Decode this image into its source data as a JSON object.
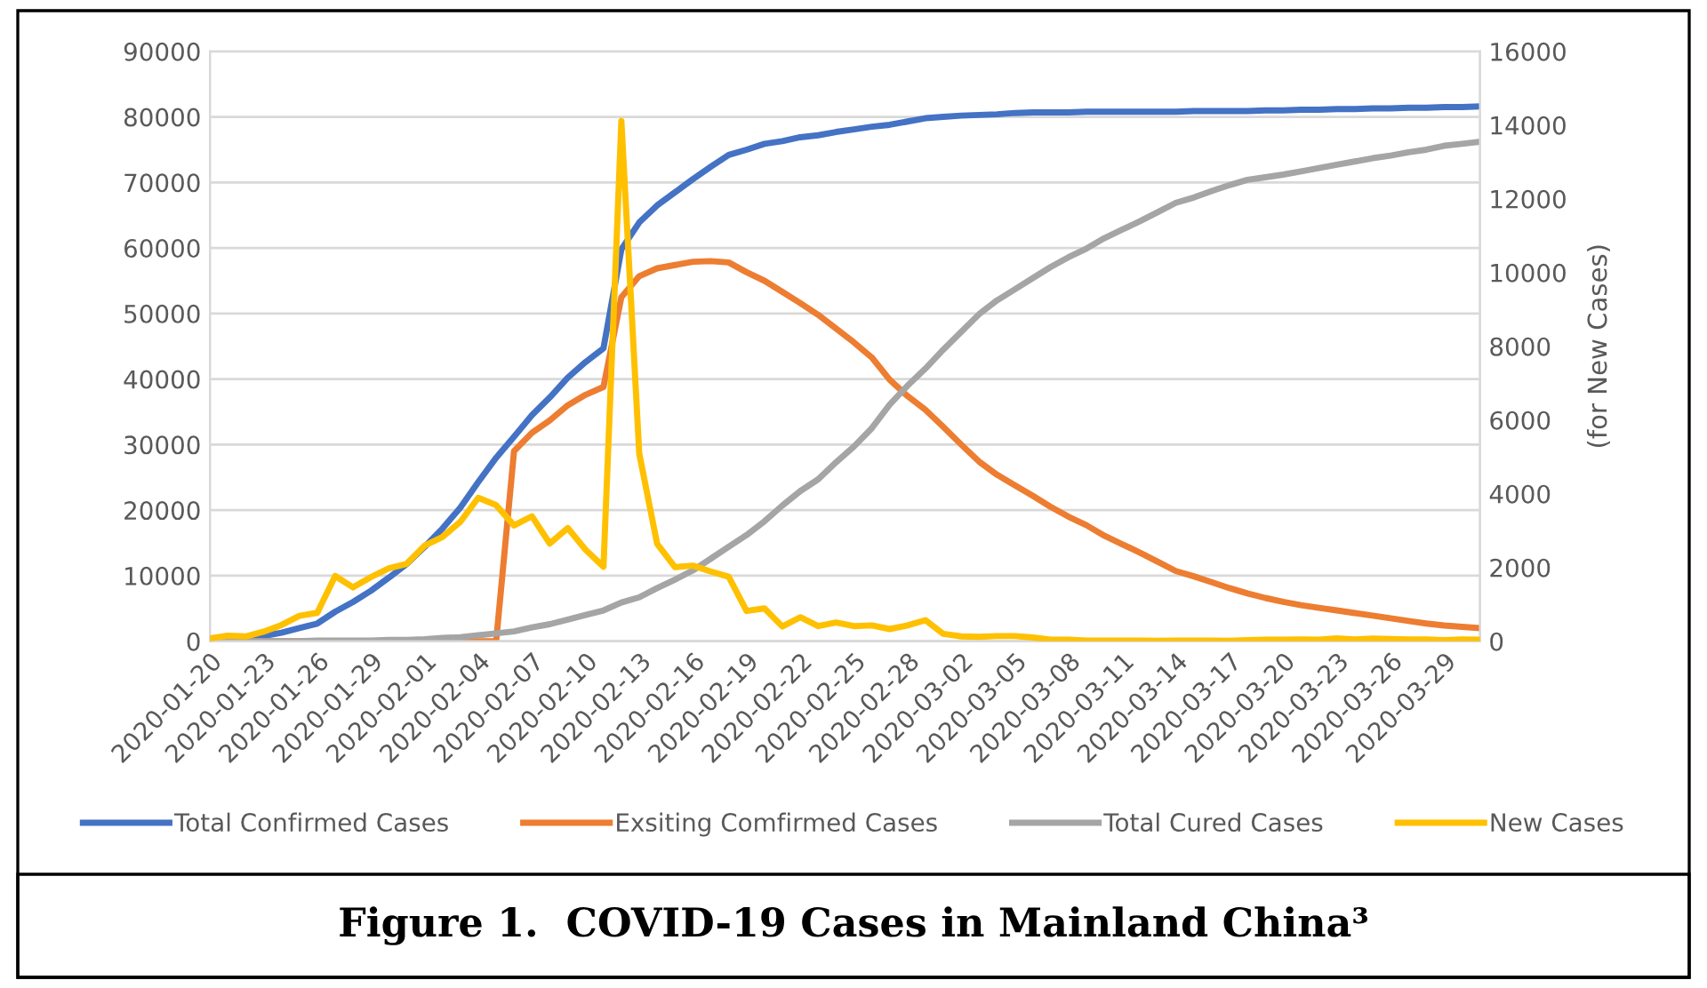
{
  "chart_data": {
    "type": "line",
    "title": "Figure 1.  COVID-19 Cases in Mainland China³",
    "y2label": "(for New Cases)",
    "x": [
      "2020-01-20",
      "2020-01-21",
      "2020-01-22",
      "2020-01-23",
      "2020-01-24",
      "2020-01-25",
      "2020-01-26",
      "2020-01-27",
      "2020-01-28",
      "2020-01-29",
      "2020-01-30",
      "2020-01-31",
      "2020-02-01",
      "2020-02-02",
      "2020-02-03",
      "2020-02-04",
      "2020-02-05",
      "2020-02-06",
      "2020-02-07",
      "2020-02-08",
      "2020-02-09",
      "2020-02-10",
      "2020-02-11",
      "2020-02-12",
      "2020-02-13",
      "2020-02-14",
      "2020-02-15",
      "2020-02-16",
      "2020-02-17",
      "2020-02-18",
      "2020-02-19",
      "2020-02-20",
      "2020-02-21",
      "2020-02-22",
      "2020-02-23",
      "2020-02-24",
      "2020-02-25",
      "2020-02-26",
      "2020-02-27",
      "2020-02-28",
      "2020-02-29",
      "2020-03-01",
      "2020-03-02",
      "2020-03-03",
      "2020-03-04",
      "2020-03-05",
      "2020-03-06",
      "2020-03-07",
      "2020-03-08",
      "2020-03-09",
      "2020-03-10",
      "2020-03-11",
      "2020-03-12",
      "2020-03-13",
      "2020-03-14",
      "2020-03-15",
      "2020-03-16",
      "2020-03-17",
      "2020-03-18",
      "2020-03-19",
      "2020-03-20",
      "2020-03-21",
      "2020-03-22",
      "2020-03-23",
      "2020-03-24",
      "2020-03-25",
      "2020-03-26",
      "2020-03-27",
      "2020-03-28",
      "2020-03-29",
      "2020-03-30",
      "2020-03-31"
    ],
    "series": [
      {
        "name": "Total Confirmed Cases",
        "color": "#4472c4",
        "values": [
          300,
          400,
          600,
          800,
          1300,
          2000,
          2700,
          4500,
          6000,
          7700,
          9700,
          11800,
          14400,
          17200,
          20400,
          24300,
          28000,
          31200,
          34500,
          37200,
          40200,
          42600,
          44700,
          59800,
          63900,
          66500,
          68500,
          70500,
          72400,
          74200,
          75000,
          75900,
          76300,
          76900,
          77200,
          77700,
          78100,
          78500,
          78800,
          79300,
          79800,
          80000,
          80200,
          80300,
          80400,
          80600,
          80700,
          80700,
          80700,
          80800,
          80800,
          80800,
          80800,
          80800,
          80800,
          80900,
          80900,
          80900,
          80900,
          81000,
          81000,
          81100,
          81100,
          81200,
          81200,
          81300,
          81300,
          81400,
          81400,
          81500,
          81500,
          81600
        ]
      },
      {
        "name": "Exsiting Comfirmed Cases",
        "color": "#ed7d31",
        "values": [
          0,
          0,
          0,
          0,
          0,
          0,
          0,
          0,
          0,
          0,
          0,
          0,
          0,
          0,
          0,
          0,
          0,
          29000,
          31800,
          33700,
          36000,
          37600,
          38800,
          52500,
          55700,
          56900,
          57400,
          57900,
          58000,
          57800,
          56300,
          55000,
          53300,
          51600,
          49800,
          47700,
          45600,
          43300,
          39900,
          37400,
          35300,
          32700,
          30000,
          27400,
          25400,
          23800,
          22200,
          20500,
          19000,
          17700,
          16100,
          14800,
          13500,
          12100,
          10700,
          9900,
          9000,
          8100,
          7300,
          6600,
          6000,
          5500,
          5100,
          4700,
          4300,
          3900,
          3500,
          3100,
          2700,
          2400,
          2200,
          2000
        ]
      },
      {
        "name": "Total Cured Cases",
        "color": "#a5a5a5",
        "values": [
          0,
          0,
          0,
          0,
          0,
          0,
          100,
          100,
          100,
          100,
          200,
          200,
          300,
          500,
          600,
          900,
          1200,
          1500,
          2100,
          2600,
          3300,
          4000,
          4700,
          5900,
          6700,
          8100,
          9400,
          10800,
          12600,
          14400,
          16200,
          18300,
          20700,
          22900,
          24700,
          27300,
          29700,
          32500,
          36100,
          39000,
          41600,
          44500,
          47200,
          49900,
          52000,
          53700,
          55400,
          57100,
          58600,
          59900,
          61500,
          62800,
          64100,
          65500,
          66900,
          67700,
          68700,
          69600,
          70400,
          70800,
          71200,
          71700,
          72200,
          72700,
          73200,
          73700,
          74100,
          74600,
          75000,
          75600,
          75900,
          76200
        ]
      },
      {
        "name": "New Cases",
        "color": "#ffc000",
        "axis": "y2",
        "values": [
          80,
          150,
          130,
          260,
          440,
          690,
          770,
          1770,
          1460,
          1740,
          1980,
          2100,
          2590,
          2830,
          3240,
          3890,
          3690,
          3140,
          3390,
          2650,
          3070,
          2480,
          2020,
          14110,
          5090,
          2640,
          2010,
          2050,
          1890,
          1750,
          820,
          890,
          400,
          650,
          410,
          510,
          410,
          430,
          330,
          430,
          570,
          200,
          130,
          120,
          140,
          140,
          100,
          40,
          40,
          20,
          20,
          20,
          20,
          10,
          20,
          20,
          20,
          10,
          30,
          40,
          40,
          50,
          40,
          80,
          50,
          70,
          60,
          50,
          50,
          30,
          50,
          40
        ]
      }
    ],
    "xlim": [
      "2020-01-20",
      "2020-03-31"
    ],
    "xticks": [
      "2020-01-20",
      "2020-01-23",
      "2020-01-26",
      "2020-01-29",
      "2020-02-01",
      "2020-02-04",
      "2020-02-07",
      "2020-02-10",
      "2020-02-13",
      "2020-02-16",
      "2020-02-19",
      "2020-02-22",
      "2020-02-25",
      "2020-02-28",
      "2020-03-02",
      "2020-03-05",
      "2020-03-08",
      "2020-03-11",
      "2020-03-14",
      "2020-03-17",
      "2020-03-20",
      "2020-03-23",
      "2020-03-26",
      "2020-03-29"
    ],
    "ylim": [
      0,
      90000
    ],
    "yticks": [
      0,
      10000,
      20000,
      30000,
      40000,
      50000,
      60000,
      70000,
      80000,
      90000
    ],
    "y2lim": [
      0,
      16000
    ],
    "y2ticks": [
      0,
      2000,
      4000,
      6000,
      8000,
      10000,
      12000,
      14000,
      16000
    ],
    "grid": "y",
    "legend": "bottom"
  }
}
